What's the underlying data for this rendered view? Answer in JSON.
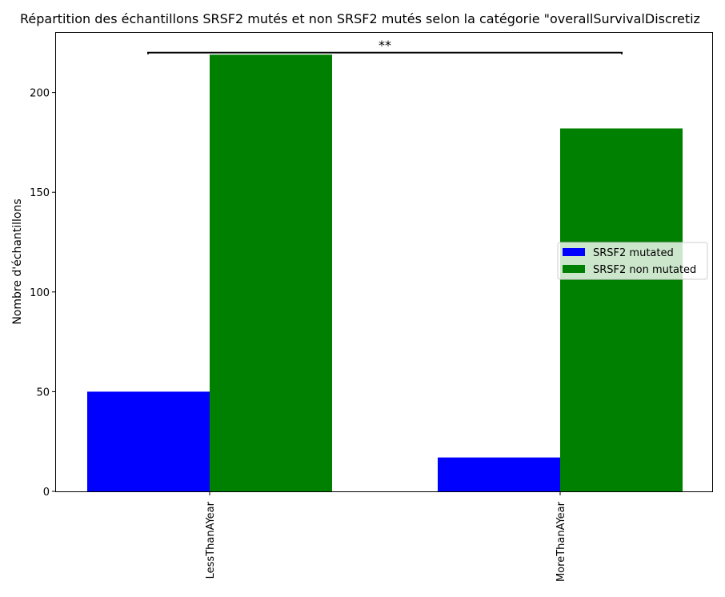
{
  "chart_data": {
    "type": "bar",
    "title": "Répartition des échantillons SRSF2 mutés et non SRSF2 mutés selon la catégorie \"overallSurvivalDiscretiz",
    "xlabel": "",
    "ylabel": "Nombre d'échantillons",
    "categories": [
      "LessThanAYear",
      "MoreThanAYear"
    ],
    "series": [
      {
        "name": "SRSF2 mutated",
        "values": [
          50,
          17
        ],
        "color": "#0000ff"
      },
      {
        "name": "SRSF2 non mutated",
        "values": [
          219,
          182
        ],
        "color": "#008000"
      }
    ],
    "ylim": [
      0,
      229.95
    ],
    "yticks": [
      0,
      50,
      100,
      150,
      200
    ],
    "legend": "center-right",
    "grid": false,
    "annotations": [
      {
        "text": "**",
        "type": "significance-bracket",
        "from_category": "LessThanAYear",
        "to_category": "MoreThanAYear",
        "y": 220
      }
    ]
  }
}
